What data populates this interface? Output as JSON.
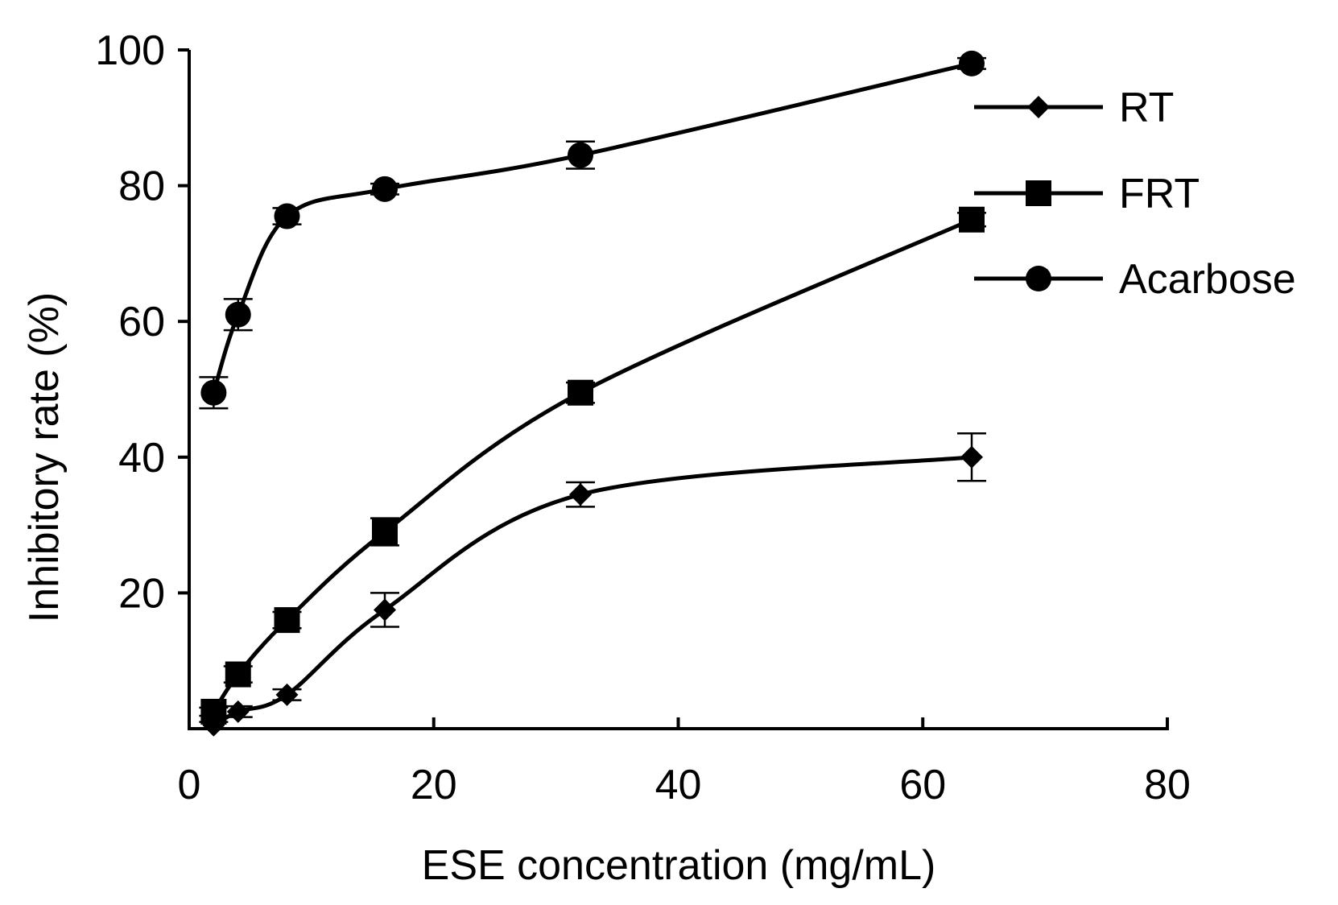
{
  "chart_data": {
    "type": "line",
    "title": "",
    "xlabel": "ESE concentration (mg/mL)",
    "ylabel": "Inhibitory rate (%)",
    "xlim": [
      0,
      80
    ],
    "ylim": [
      0,
      100
    ],
    "xticks": [
      0,
      20,
      40,
      60,
      80
    ],
    "yticks": [
      20,
      40,
      60,
      80,
      100
    ],
    "grid": false,
    "legend_position": "right",
    "x": [
      2,
      4,
      8,
      16,
      32,
      64
    ],
    "series": [
      {
        "name": "RT",
        "marker": "diamond",
        "values": [
          0.5,
          2.5,
          5,
          17.5,
          34.5,
          40
        ],
        "errors": [
          0.5,
          0.8,
          0.8,
          2.5,
          1.8,
          3.5
        ]
      },
      {
        "name": "FRT",
        "marker": "square",
        "values": [
          2.5,
          8,
          16,
          29,
          49.5,
          75
        ],
        "errors": [
          0.6,
          1.2,
          1.2,
          2.0,
          1.5,
          1.0
        ]
      },
      {
        "name": "Acarbose",
        "marker": "circle",
        "values": [
          49.5,
          61,
          75.5,
          79.5,
          84.5,
          98
        ],
        "errors": [
          2.3,
          2.3,
          1.2,
          0.8,
          2.0,
          0.8
        ]
      }
    ]
  }
}
